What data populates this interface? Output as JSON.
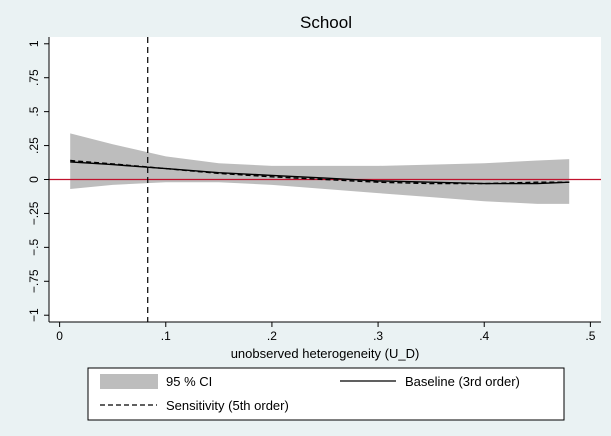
{
  "chart_data": {
    "type": "line",
    "title": "School",
    "xlabel": "unobserved heterogeneity (U_D)",
    "ylabel": "",
    "xlim": [
      -0.01,
      0.51
    ],
    "ylim": [
      -1.05,
      1.05
    ],
    "x_ticks": [
      0,
      0.1,
      0.2,
      0.3,
      0.4,
      0.5
    ],
    "x_tick_labels": [
      "0",
      ".1",
      ".2",
      ".3",
      ".4",
      ".5"
    ],
    "y_ticks": [
      -1,
      -0.75,
      -0.5,
      -0.25,
      0,
      0.25,
      0.5,
      0.75,
      1
    ],
    "y_tick_labels": [
      "−1",
      "−.75",
      "−.5",
      "−.25",
      "0",
      ".25",
      ".5",
      ".75",
      "1"
    ],
    "reference_lines": {
      "horizontal": {
        "y": 0,
        "color": "#c0132e"
      },
      "vertical": {
        "x": 0.083,
        "style": "dashed"
      }
    },
    "grid": false,
    "legend_position": "bottom",
    "series": [
      {
        "name": "95 % CI",
        "kind": "band",
        "color": "#bdbdbd",
        "x": [
          0.01,
          0.05,
          0.1,
          0.15,
          0.2,
          0.25,
          0.3,
          0.35,
          0.4,
          0.45,
          0.48
        ],
        "lower": [
          -0.07,
          -0.04,
          -0.02,
          -0.02,
          -0.04,
          -0.07,
          -0.1,
          -0.13,
          -0.16,
          -0.18,
          -0.18
        ],
        "upper": [
          0.34,
          0.26,
          0.17,
          0.12,
          0.1,
          0.1,
          0.1,
          0.11,
          0.12,
          0.14,
          0.15
        ]
      },
      {
        "name": "Baseline (3rd order)",
        "kind": "line",
        "dash": "solid",
        "color": "#000000",
        "x": [
          0.01,
          0.05,
          0.1,
          0.15,
          0.2,
          0.25,
          0.3,
          0.35,
          0.4,
          0.45,
          0.48
        ],
        "values": [
          0.13,
          0.11,
          0.08,
          0.05,
          0.03,
          0.01,
          -0.01,
          -0.02,
          -0.03,
          -0.03,
          -0.02
        ]
      },
      {
        "name": "Sensitivity (5th order)",
        "kind": "line",
        "dash": "dashed",
        "color": "#000000",
        "x": [
          0.01,
          0.05,
          0.1,
          0.15,
          0.2,
          0.25,
          0.3,
          0.35,
          0.4,
          0.45,
          0.48
        ],
        "values": [
          0.14,
          0.115,
          0.08,
          0.045,
          0.02,
          0.0,
          -0.02,
          -0.03,
          -0.03,
          -0.02,
          -0.02
        ]
      }
    ]
  }
}
